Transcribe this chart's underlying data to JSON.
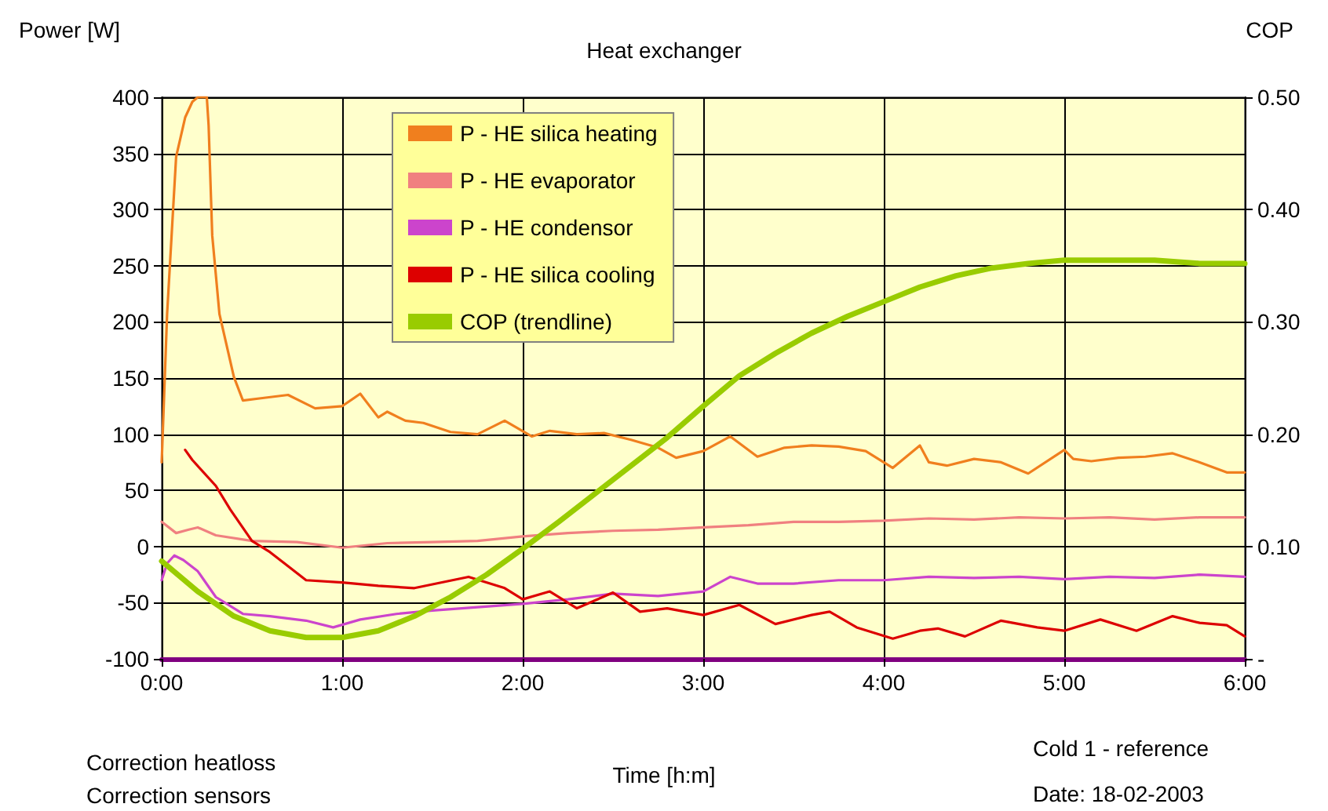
{
  "chart_data": {
    "type": "line",
    "title": "Heat exchanger",
    "xlabel": "Time [h:m]",
    "ylabel": "Power [W]",
    "y2label": "COP",
    "annotations": [
      "Correction heatloss",
      "Correction sensors",
      "Cold 1 - reference",
      "Date: 18-02-2003"
    ],
    "xlim": [
      0,
      6
    ],
    "xticks": [
      {
        "value": 0,
        "label": "0:00"
      },
      {
        "value": 1,
        "label": "1:00"
      },
      {
        "value": 2,
        "label": "2:00"
      },
      {
        "value": 3,
        "label": "3:00"
      },
      {
        "value": 4,
        "label": "4:00"
      },
      {
        "value": 5,
        "label": "5:00"
      },
      {
        "value": 6,
        "label": "6:00"
      }
    ],
    "ylim": [
      -100,
      400
    ],
    "yticks": [
      -100,
      -50,
      0,
      50,
      100,
      150,
      200,
      250,
      300,
      350,
      400
    ],
    "y2lim": [
      0,
      0.5
    ],
    "y2ticks": [
      {
        "value": 0,
        "label": "-"
      },
      {
        "value": 0.1,
        "label": "0.10"
      },
      {
        "value": 0.2,
        "label": "0.20"
      },
      {
        "value": 0.3,
        "label": "0.30"
      },
      {
        "value": 0.4,
        "label": "0.40"
      },
      {
        "value": 0.5,
        "label": "0.50"
      }
    ],
    "grid": true,
    "legend": "top left",
    "marker": "none",
    "line_style": "solid",
    "series": [
      {
        "name": "P - HE silica heating",
        "color": "#f07f1e",
        "x": [
          0,
          0.03,
          0.08,
          0.13,
          0.17,
          0.2,
          0.25,
          0.26,
          0.28,
          0.32,
          0.4,
          0.45,
          0.55,
          0.7,
          0.85,
          1.0,
          1.1,
          1.2,
          1.25,
          1.35,
          1.45,
          1.6,
          1.75,
          1.9,
          2.05,
          2.15,
          2.3,
          2.45,
          2.6,
          2.75,
          2.85,
          3.0,
          3.15,
          3.3,
          3.45,
          3.6,
          3.75,
          3.9,
          4.05,
          4.2,
          4.25,
          4.35,
          4.5,
          4.65,
          4.8,
          5.0,
          5.05,
          5.15,
          5.3,
          5.45,
          5.6,
          5.75,
          5.9,
          6.0
        ],
        "values": [
          75,
          207,
          347,
          382,
          396,
          400,
          400,
          375,
          277,
          207,
          151,
          130,
          132,
          135,
          123,
          125,
          136,
          115,
          120,
          112,
          110,
          102,
          100,
          112,
          98,
          103,
          100,
          101,
          95,
          88,
          79,
          85,
          98,
          80,
          88,
          90,
          89,
          85,
          70,
          90,
          75,
          72,
          78,
          75,
          65,
          86,
          78,
          76,
          79,
          80,
          83,
          75,
          66,
          66
        ]
      },
      {
        "name": "P - HE evaporator",
        "color": "#f08080",
        "x": [
          0,
          0.08,
          0.15,
          0.2,
          0.3,
          0.5,
          0.75,
          1.0,
          1.25,
          1.5,
          1.75,
          2.0,
          2.25,
          2.5,
          2.75,
          3.0,
          3.25,
          3.5,
          3.75,
          4.0,
          4.25,
          4.5,
          4.75,
          5.0,
          5.25,
          5.5,
          5.75,
          6.0
        ],
        "values": [
          22,
          12,
          15,
          17,
          10,
          5,
          4,
          -1,
          3,
          4,
          5,
          9,
          12,
          14,
          15,
          17,
          19,
          22,
          22,
          23,
          25,
          24,
          26,
          25,
          26,
          24,
          26,
          26
        ]
      },
      {
        "name": "P - HE condensor",
        "color": "#cc44cc",
        "x": [
          0,
          0.03,
          0.07,
          0.12,
          0.2,
          0.3,
          0.45,
          0.6,
          0.8,
          0.95,
          1.1,
          1.3,
          1.5,
          1.75,
          2.0,
          2.25,
          2.5,
          2.75,
          3.0,
          3.15,
          3.3,
          3.5,
          3.75,
          4.0,
          4.25,
          4.5,
          4.75,
          5.0,
          5.25,
          5.5,
          5.75,
          6.0
        ],
        "values": [
          -30,
          -15,
          -8,
          -12,
          -22,
          -45,
          -60,
          -62,
          -66,
          -72,
          -65,
          -60,
          -57,
          -54,
          -51,
          -47,
          -42,
          -44,
          -40,
          -27,
          -33,
          -33,
          -30,
          -30,
          -27,
          -28,
          -27,
          -29,
          -27,
          -28,
          -25,
          -27
        ]
      },
      {
        "name": "P - HE silica cooling",
        "color": "#dd0000",
        "x": [
          0.13,
          0.17,
          0.3,
          0.38,
          0.5,
          0.6,
          0.68,
          0.8,
          1.0,
          1.2,
          1.4,
          1.7,
          1.9,
          2.0,
          2.15,
          2.3,
          2.5,
          2.65,
          2.8,
          3.0,
          3.2,
          3.4,
          3.6,
          3.7,
          3.85,
          4.05,
          4.2,
          4.3,
          4.45,
          4.65,
          4.85,
          5.0,
          5.2,
          5.4,
          5.6,
          5.75,
          5.9,
          6.0
        ],
        "values": [
          86,
          77,
          54,
          33,
          5,
          -5,
          -15,
          -30,
          -32,
          -35,
          -37,
          -27,
          -37,
          -47,
          -40,
          -55,
          -41,
          -58,
          -55,
          -61,
          -52,
          -69,
          -61,
          -58,
          -72,
          -82,
          -75,
          -73,
          -80,
          -66,
          -72,
          -75,
          -65,
          -75,
          -62,
          -68,
          -70,
          -80
        ]
      },
      {
        "name": "COP (trendline)",
        "color": "#99cc00",
        "axis": "y2",
        "x": [
          0,
          0.2,
          0.4,
          0.6,
          0.8,
          1.0,
          1.2,
          1.4,
          1.6,
          1.8,
          2.0,
          2.2,
          2.4,
          2.6,
          2.8,
          3.0,
          3.2,
          3.4,
          3.6,
          3.8,
          4.0,
          4.2,
          4.4,
          4.6,
          4.8,
          5.0,
          5.25,
          5.5,
          5.75,
          6.0
        ],
        "values": [
          0.087,
          0.06,
          0.038,
          0.025,
          0.019,
          0.019,
          0.025,
          0.038,
          0.055,
          0.075,
          0.098,
          0.122,
          0.147,
          0.172,
          0.197,
          0.225,
          0.252,
          0.272,
          0.29,
          0.305,
          0.318,
          0.331,
          0.341,
          0.348,
          0.352,
          0.355,
          0.355,
          0.355,
          0.352,
          0.352
        ]
      }
    ]
  }
}
